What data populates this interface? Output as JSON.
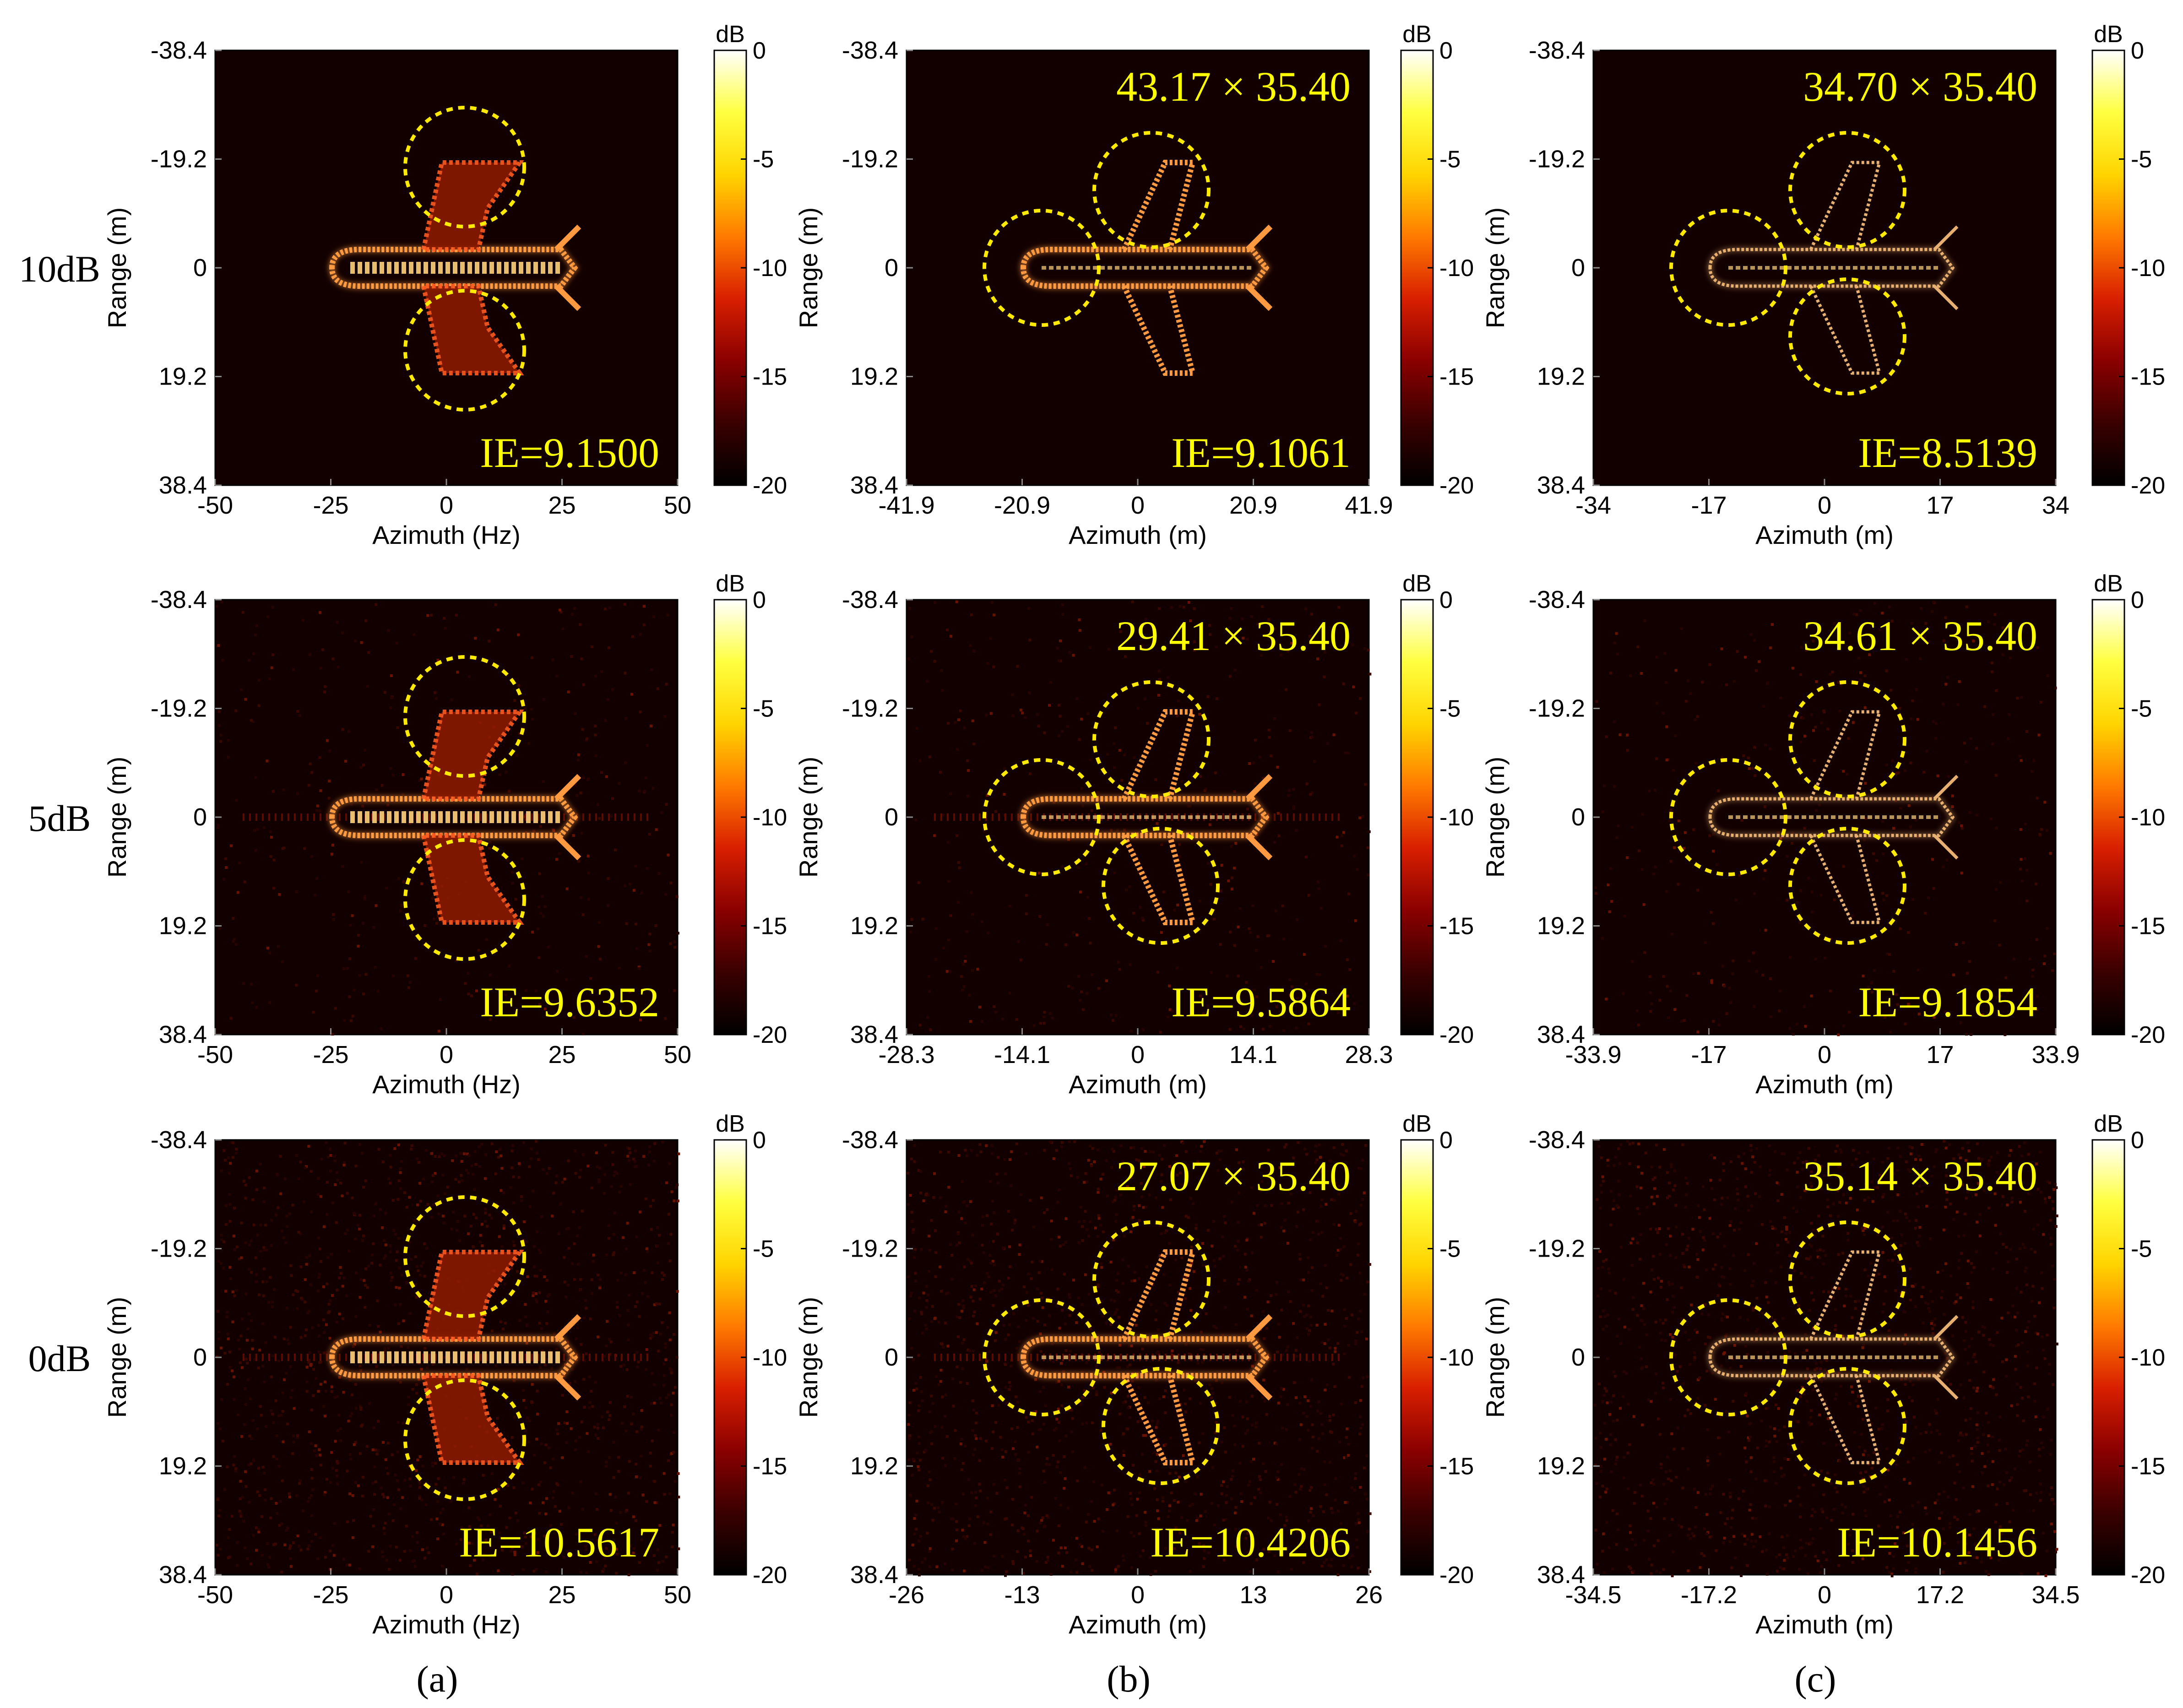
{
  "row_labels": [
    "10dB",
    "5dB",
    "0dB"
  ],
  "column_labels": [
    "(a)",
    "(b)",
    "(c)"
  ],
  "colorbar": {
    "unit": "dB",
    "ticks": [
      "0",
      "-5",
      "-10",
      "-15",
      "-20"
    ],
    "colors": [
      "#000000",
      "#3a0000",
      "#8a0000",
      "#d81f00",
      "#ff7a00",
      "#ffd400",
      "#ffff40",
      "#ffffff"
    ]
  },
  "range_axis": {
    "label": "Range (m)",
    "ticks": [
      "-38.4",
      "-19.2",
      "0",
      "19.2",
      "38.4"
    ]
  },
  "annotation_color": "#ffff00",
  "marker_color": "#ffea00",
  "panels": [
    {
      "row": 0,
      "col": 0,
      "x_label": "Azimuth (Hz)",
      "x_ticks": [
        "-50",
        "-25",
        "0",
        "25",
        "50"
      ],
      "ie": "IE=9.1500",
      "size": "",
      "noise": 0.0,
      "style": "raw"
    },
    {
      "row": 0,
      "col": 1,
      "x_label": "Azimuth (m)",
      "x_ticks": [
        "-41.9",
        "-20.9",
        "0",
        "20.9",
        "41.9"
      ],
      "ie": "IE=9.1061",
      "size": "43.17 × 35.40",
      "noise": 0.0,
      "style": "rot"
    },
    {
      "row": 0,
      "col": 2,
      "x_label": "Azimuth (m)",
      "x_ticks": [
        "-34",
        "-17",
        "0",
        "17",
        "34"
      ],
      "ie": "IE=8.5139",
      "size": "34.70 × 35.40",
      "noise": 0.0,
      "style": "thin"
    },
    {
      "row": 1,
      "col": 0,
      "x_label": "Azimuth (Hz)",
      "x_ticks": [
        "-50",
        "-25",
        "0",
        "25",
        "50"
      ],
      "ie": "IE=9.6352",
      "size": "",
      "noise": 0.3,
      "style": "raw"
    },
    {
      "row": 1,
      "col": 1,
      "x_label": "Azimuth (m)",
      "x_ticks": [
        "-28.3",
        "-14.1",
        "0",
        "14.1",
        "28.3"
      ],
      "ie": "IE=9.5864",
      "size": "29.41 × 35.40",
      "noise": 0.3,
      "style": "rot"
    },
    {
      "row": 1,
      "col": 2,
      "x_label": "Azimuth (m)",
      "x_ticks": [
        "-33.9",
        "-17",
        "0",
        "17",
        "33.9"
      ],
      "ie": "IE=9.1854",
      "size": "34.61 × 35.40",
      "noise": 0.3,
      "style": "thin"
    },
    {
      "row": 2,
      "col": 0,
      "x_label": "Azimuth (Hz)",
      "x_ticks": [
        "-50",
        "-25",
        "0",
        "25",
        "50"
      ],
      "ie": "IE=10.5617",
      "size": "",
      "noise": 1.0,
      "style": "raw"
    },
    {
      "row": 2,
      "col": 1,
      "x_label": "Azimuth (m)",
      "x_ticks": [
        "-26",
        "-13",
        "0",
        "13",
        "26"
      ],
      "ie": "IE=10.4206",
      "size": "27.07 × 35.40",
      "noise": 1.0,
      "style": "rot"
    },
    {
      "row": 2,
      "col": 2,
      "x_label": "Azimuth (m)",
      "x_ticks": [
        "-34.5",
        "-17.2",
        "0",
        "17.2",
        "34.5"
      ],
      "ie": "IE=10.1456",
      "size": "35.14 × 35.40",
      "noise": 1.0,
      "style": "thin"
    }
  ]
}
